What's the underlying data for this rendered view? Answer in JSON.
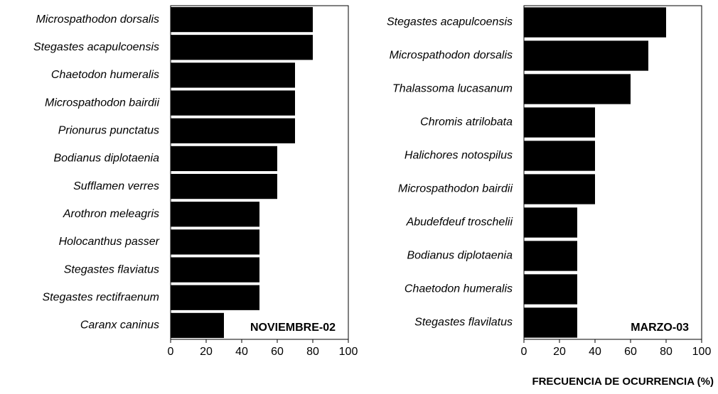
{
  "chart_data": [
    {
      "type": "barh",
      "annotation": "NOVIEMBRE-02",
      "categories": [
        "Microspathodon dorsalis",
        "Stegastes acapulcoensis",
        "Chaetodon humeralis",
        "Microspathodon bairdii",
        "Prionurus punctatus",
        "Bodianus diplotaenia",
        "Sufflamen verres",
        "Arothron meleagris",
        "Holocanthus passer",
        "Stegastes flaviatus",
        "Stegastes rectifraenum",
        "Caranx caninus"
      ],
      "values": [
        80,
        80,
        70,
        70,
        70,
        60,
        60,
        50,
        50,
        50,
        50,
        30
      ],
      "color": "#000000",
      "xlim": [
        0,
        100
      ],
      "xticks": [
        0,
        20,
        40,
        60,
        80,
        100
      ]
    },
    {
      "type": "barh",
      "annotation": "MARZO-03",
      "xlabel": "FRECUENCIA DE OCURRENCIA (%)",
      "categories": [
        "Stegastes acapulcoensis",
        "Microspathodon dorsalis",
        "Thalassoma lucasanum",
        "Chromis atrilobata",
        "Halichores notospilus",
        "Microspathodon bairdii",
        "Abudefdeuf troschelii",
        "Bodianus diplotaenia",
        "Chaetodon humeralis",
        "Stegastes flavilatus"
      ],
      "values": [
        80,
        70,
        60,
        40,
        40,
        40,
        30,
        30,
        30,
        30
      ],
      "color": "#000000",
      "xlim": [
        0,
        100
      ],
      "xticks": [
        0,
        20,
        40,
        60,
        80,
        100
      ]
    }
  ]
}
